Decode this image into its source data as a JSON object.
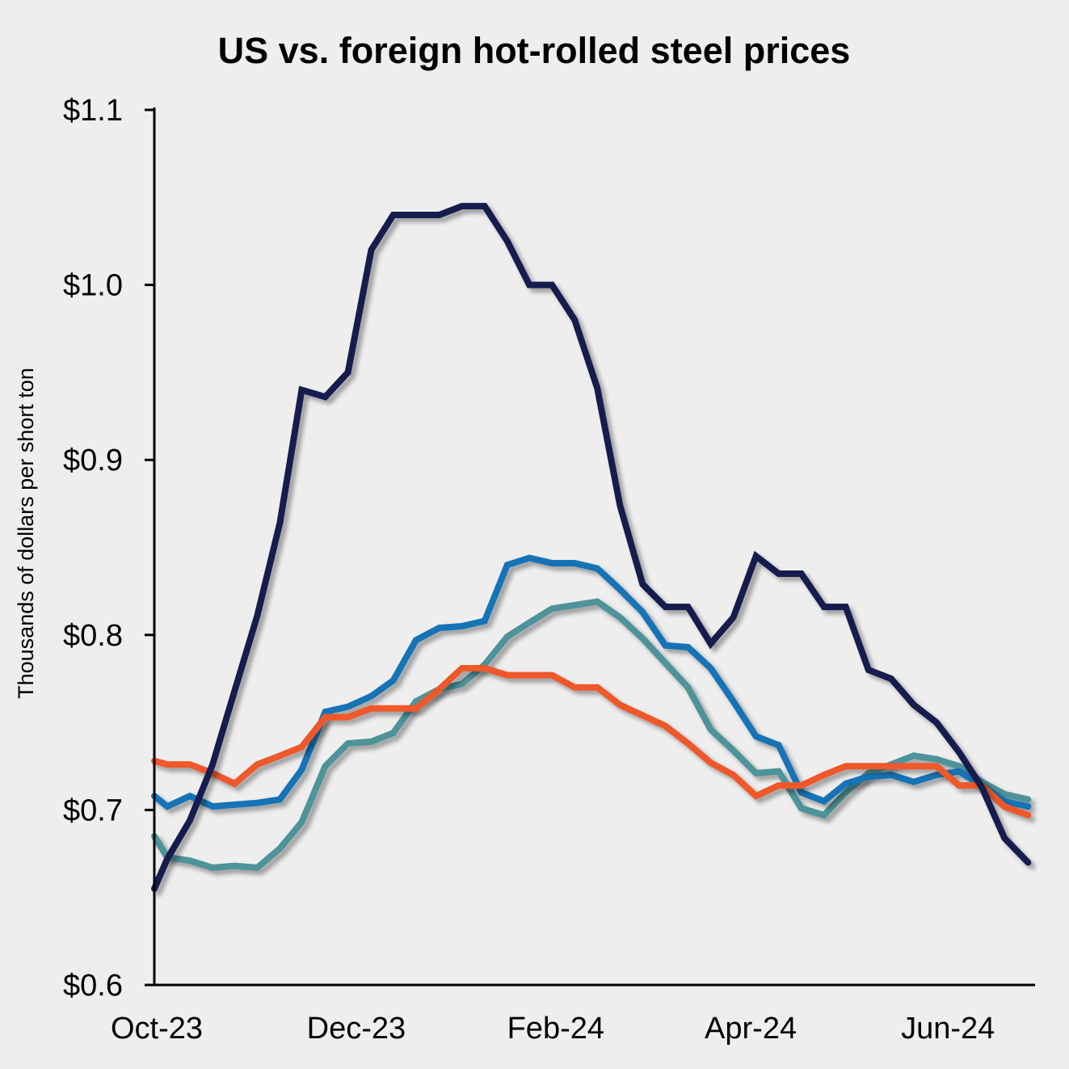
{
  "chart_data": {
    "type": "line",
    "title": "US vs. foreign hot-rolled steel prices",
    "xlabel": "",
    "ylabel": "Thousands of dollars per short ton",
    "ylim": [
      0.6,
      1.1
    ],
    "yticks": [
      0.6,
      0.7,
      0.8,
      0.9,
      1.0,
      1.1
    ],
    "ytick_labels": [
      "$0.6",
      "$0.7",
      "$0.8",
      "$0.9",
      "$1.0",
      "$1.1"
    ],
    "x_unit": "weeks since start of Oct-23",
    "xlim": [
      0,
      38.6
    ],
    "xticks": [
      0,
      8.8,
      17.6,
      26.2,
      34.9
    ],
    "xtick_labels": [
      "Oct-23",
      "Dec-23",
      "Feb-24",
      "Apr-24",
      "Jun-24"
    ],
    "grid": false,
    "legend": "none",
    "x": [
      0,
      0.57,
      1.57,
      2.57,
      3.54,
      4.54,
      5.54,
      6.5,
      7.54,
      8.54,
      9.57,
      10.54,
      11.54,
      12.57,
      13.57,
      14.57,
      15.57,
      16.54,
      17.54,
      18.54,
      19.54,
      20.54,
      21.54,
      22.54,
      23.54,
      24.54,
      25.54,
      26.54,
      27.54,
      28.54,
      29.54,
      30.5,
      31.5,
      32.5,
      33.5,
      34.5,
      35.5,
      36.5,
      37.5,
      38.54
    ],
    "series": [
      {
        "name": "navy",
        "color": "#161b4e",
        "values": [
          0.655,
          0.672,
          0.694,
          0.726,
          0.768,
          0.811,
          0.864,
          0.94,
          0.936,
          0.95,
          1.02,
          1.04,
          1.04,
          1.04,
          1.045,
          1.045,
          1.025,
          1.0,
          1.0,
          0.98,
          0.941,
          0.874,
          0.829,
          0.816,
          0.816,
          0.795,
          0.81,
          0.845,
          0.835,
          0.835,
          0.816,
          0.816,
          0.78,
          0.775,
          0.76,
          0.75,
          0.733,
          0.713,
          0.684,
          0.67
        ]
      },
      {
        "name": "blue",
        "color": "#1473b5",
        "values": [
          0.708,
          0.702,
          0.708,
          0.702,
          0.703,
          0.704,
          0.706,
          0.723,
          0.756,
          0.759,
          0.765,
          0.774,
          0.797,
          0.804,
          0.805,
          0.808,
          0.84,
          0.844,
          0.841,
          0.841,
          0.838,
          0.826,
          0.813,
          0.794,
          0.793,
          0.781,
          0.762,
          0.742,
          0.737,
          0.71,
          0.705,
          0.715,
          0.719,
          0.72,
          0.716,
          0.72,
          0.722,
          0.714,
          0.705,
          0.702
        ]
      },
      {
        "name": "teal",
        "color": "#4e9399",
        "values": [
          0.685,
          0.673,
          0.671,
          0.667,
          0.668,
          0.667,
          0.678,
          0.693,
          0.725,
          0.738,
          0.739,
          0.744,
          0.762,
          0.769,
          0.772,
          0.783,
          0.799,
          0.807,
          0.815,
          0.817,
          0.819,
          0.81,
          0.798,
          0.784,
          0.77,
          0.746,
          0.734,
          0.721,
          0.722,
          0.701,
          0.697,
          0.71,
          0.721,
          0.726,
          0.731,
          0.729,
          0.725,
          0.716,
          0.709,
          0.706
        ]
      },
      {
        "name": "orange",
        "color": "#ee582a",
        "values": [
          0.728,
          0.726,
          0.726,
          0.721,
          0.715,
          0.726,
          0.731,
          0.736,
          0.753,
          0.753,
          0.758,
          0.758,
          0.758,
          0.769,
          0.781,
          0.781,
          0.777,
          0.777,
          0.777,
          0.77,
          0.77,
          0.76,
          0.754,
          0.748,
          0.738,
          0.727,
          0.72,
          0.708,
          0.714,
          0.714,
          0.72,
          0.725,
          0.725,
          0.725,
          0.725,
          0.725,
          0.714,
          0.714,
          0.702,
          0.697
        ]
      }
    ]
  }
}
